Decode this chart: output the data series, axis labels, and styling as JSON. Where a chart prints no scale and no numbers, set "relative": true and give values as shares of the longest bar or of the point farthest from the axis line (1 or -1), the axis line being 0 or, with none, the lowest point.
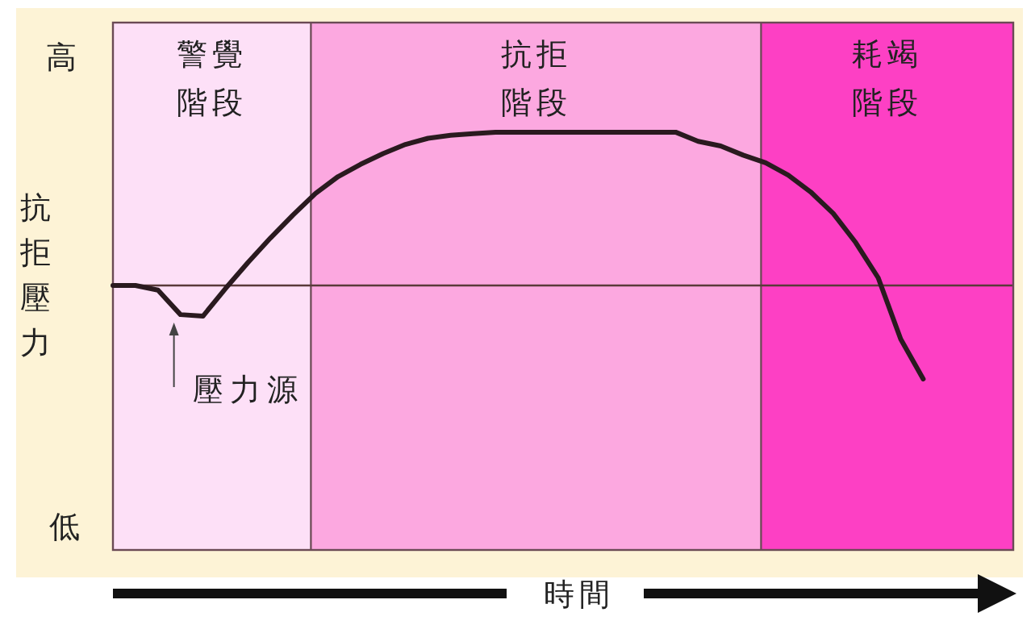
{
  "chart_data": {
    "type": "line",
    "relative": true,
    "ylabel": "抗拒壓力",
    "categories": [
      null,
      null,
      null,
      null,
      null,
      null,
      null,
      null,
      null,
      null,
      null,
      null,
      null,
      null,
      null,
      null,
      null,
      null,
      null,
      null,
      null,
      null,
      null,
      null,
      null,
      null,
      null,
      null,
      null,
      null,
      null,
      null,
      null,
      null,
      null,
      null,
      null,
      null,
      null,
      null,
      null
    ],
    "series": [
      {
        "color": "#2a1a1f",
        "values": [
          0,
          0,
          -0.03,
          -0.19,
          -0.2,
          -0.02,
          0.15,
          0.31,
          0.46,
          0.6,
          0.71,
          0.79,
          0.86,
          0.92,
          0.96,
          0.98,
          0.99,
          1,
          1,
          1,
          1,
          1,
          1,
          1,
          1,
          1,
          0.94,
          0.91,
          0.85,
          0.8,
          0.72,
          0.61,
          0.47,
          0.28,
          0.05,
          -0.35,
          -0.61,
          null,
          null,
          null,
          null
        ]
      }
    ],
    "ref_lines": [
      {
        "axis": "y",
        "value": 0,
        "color": "#5a3a3a"
      }
    ],
    "annotations": [
      "高",
      "低",
      "壓力源",
      "警覺階段",
      "抗拒階段",
      "耗竭階段",
      "時間"
    ],
    "line_style": "solid"
  }
}
